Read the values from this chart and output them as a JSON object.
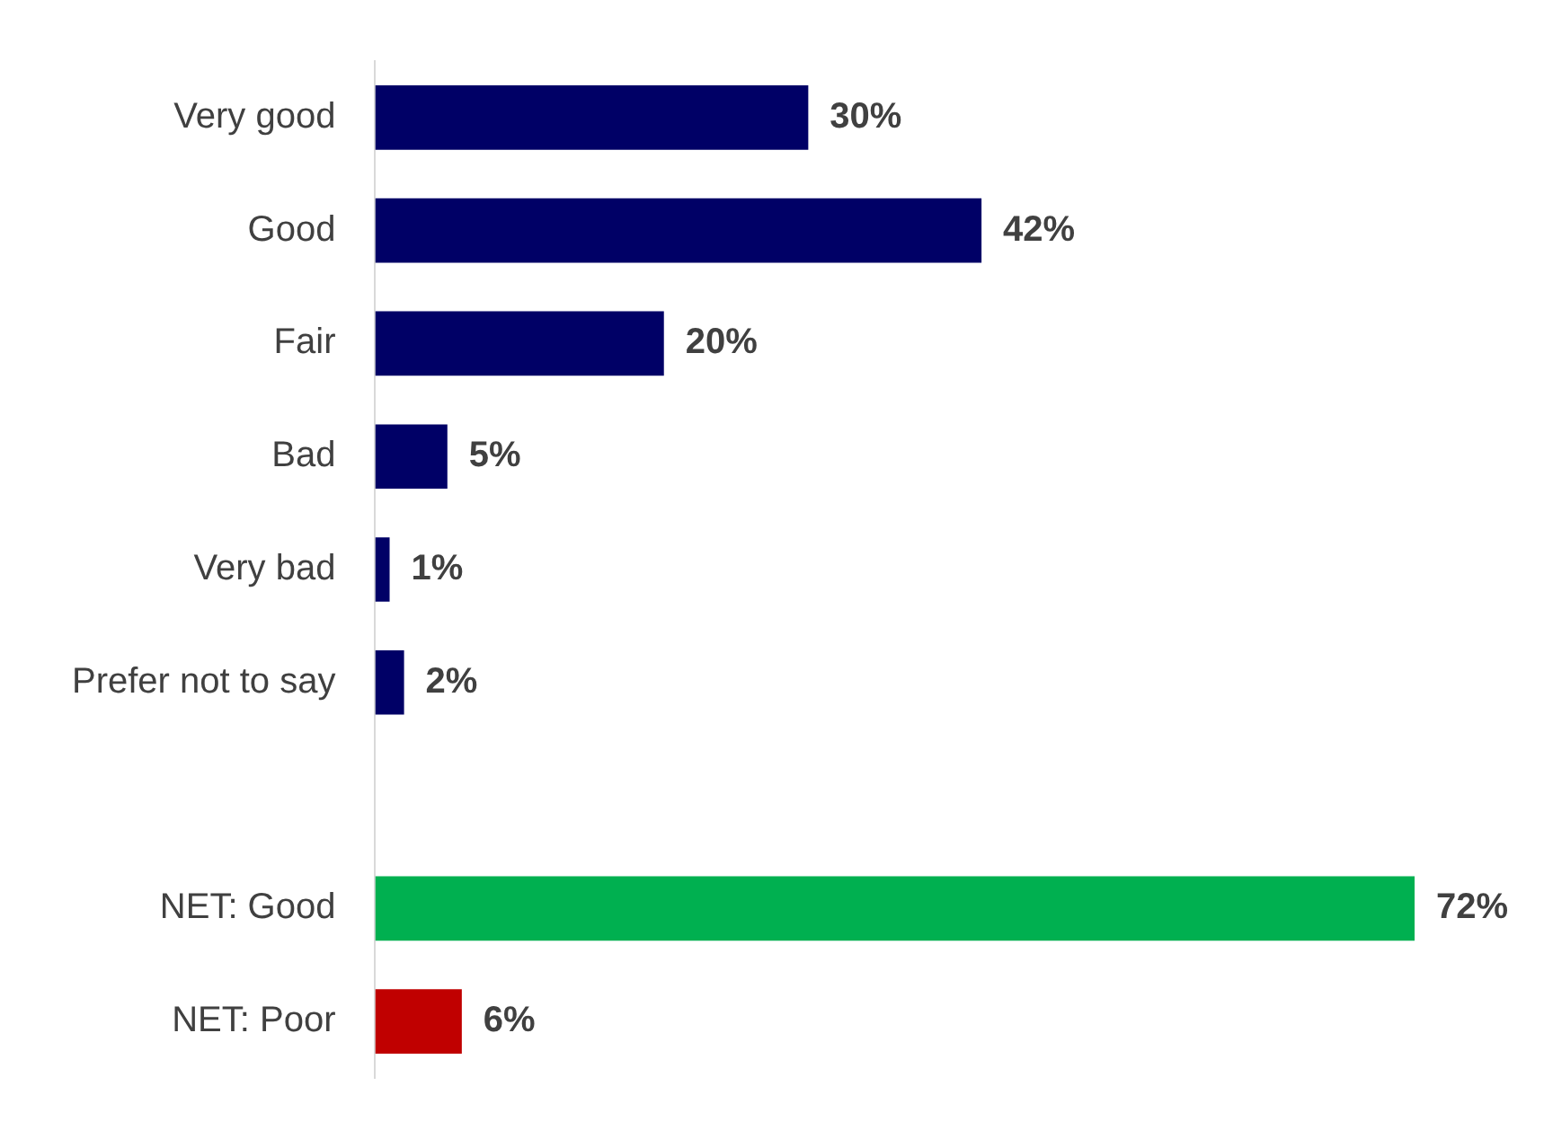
{
  "chart_data": {
    "type": "bar",
    "orientation": "horizontal",
    "tick_labels": "y",
    "categories": [
      "Very good",
      "Good",
      "Fair",
      "Bad",
      "Very bad",
      "Prefer not to say",
      null,
      "NET: Good",
      "NET: Poor"
    ],
    "values": [
      30,
      42,
      20,
      5,
      1,
      2,
      null,
      72,
      6
    ],
    "colors": [
      "#000066",
      "#000066",
      "#000066",
      "#000066",
      "#000066",
      "#000066",
      "#000066",
      "#00b050",
      "#c00000"
    ],
    "value_labels": [
      "30%",
      "42%",
      "20%",
      "5%",
      "1%",
      "2%",
      null,
      "72%",
      "6%"
    ]
  }
}
